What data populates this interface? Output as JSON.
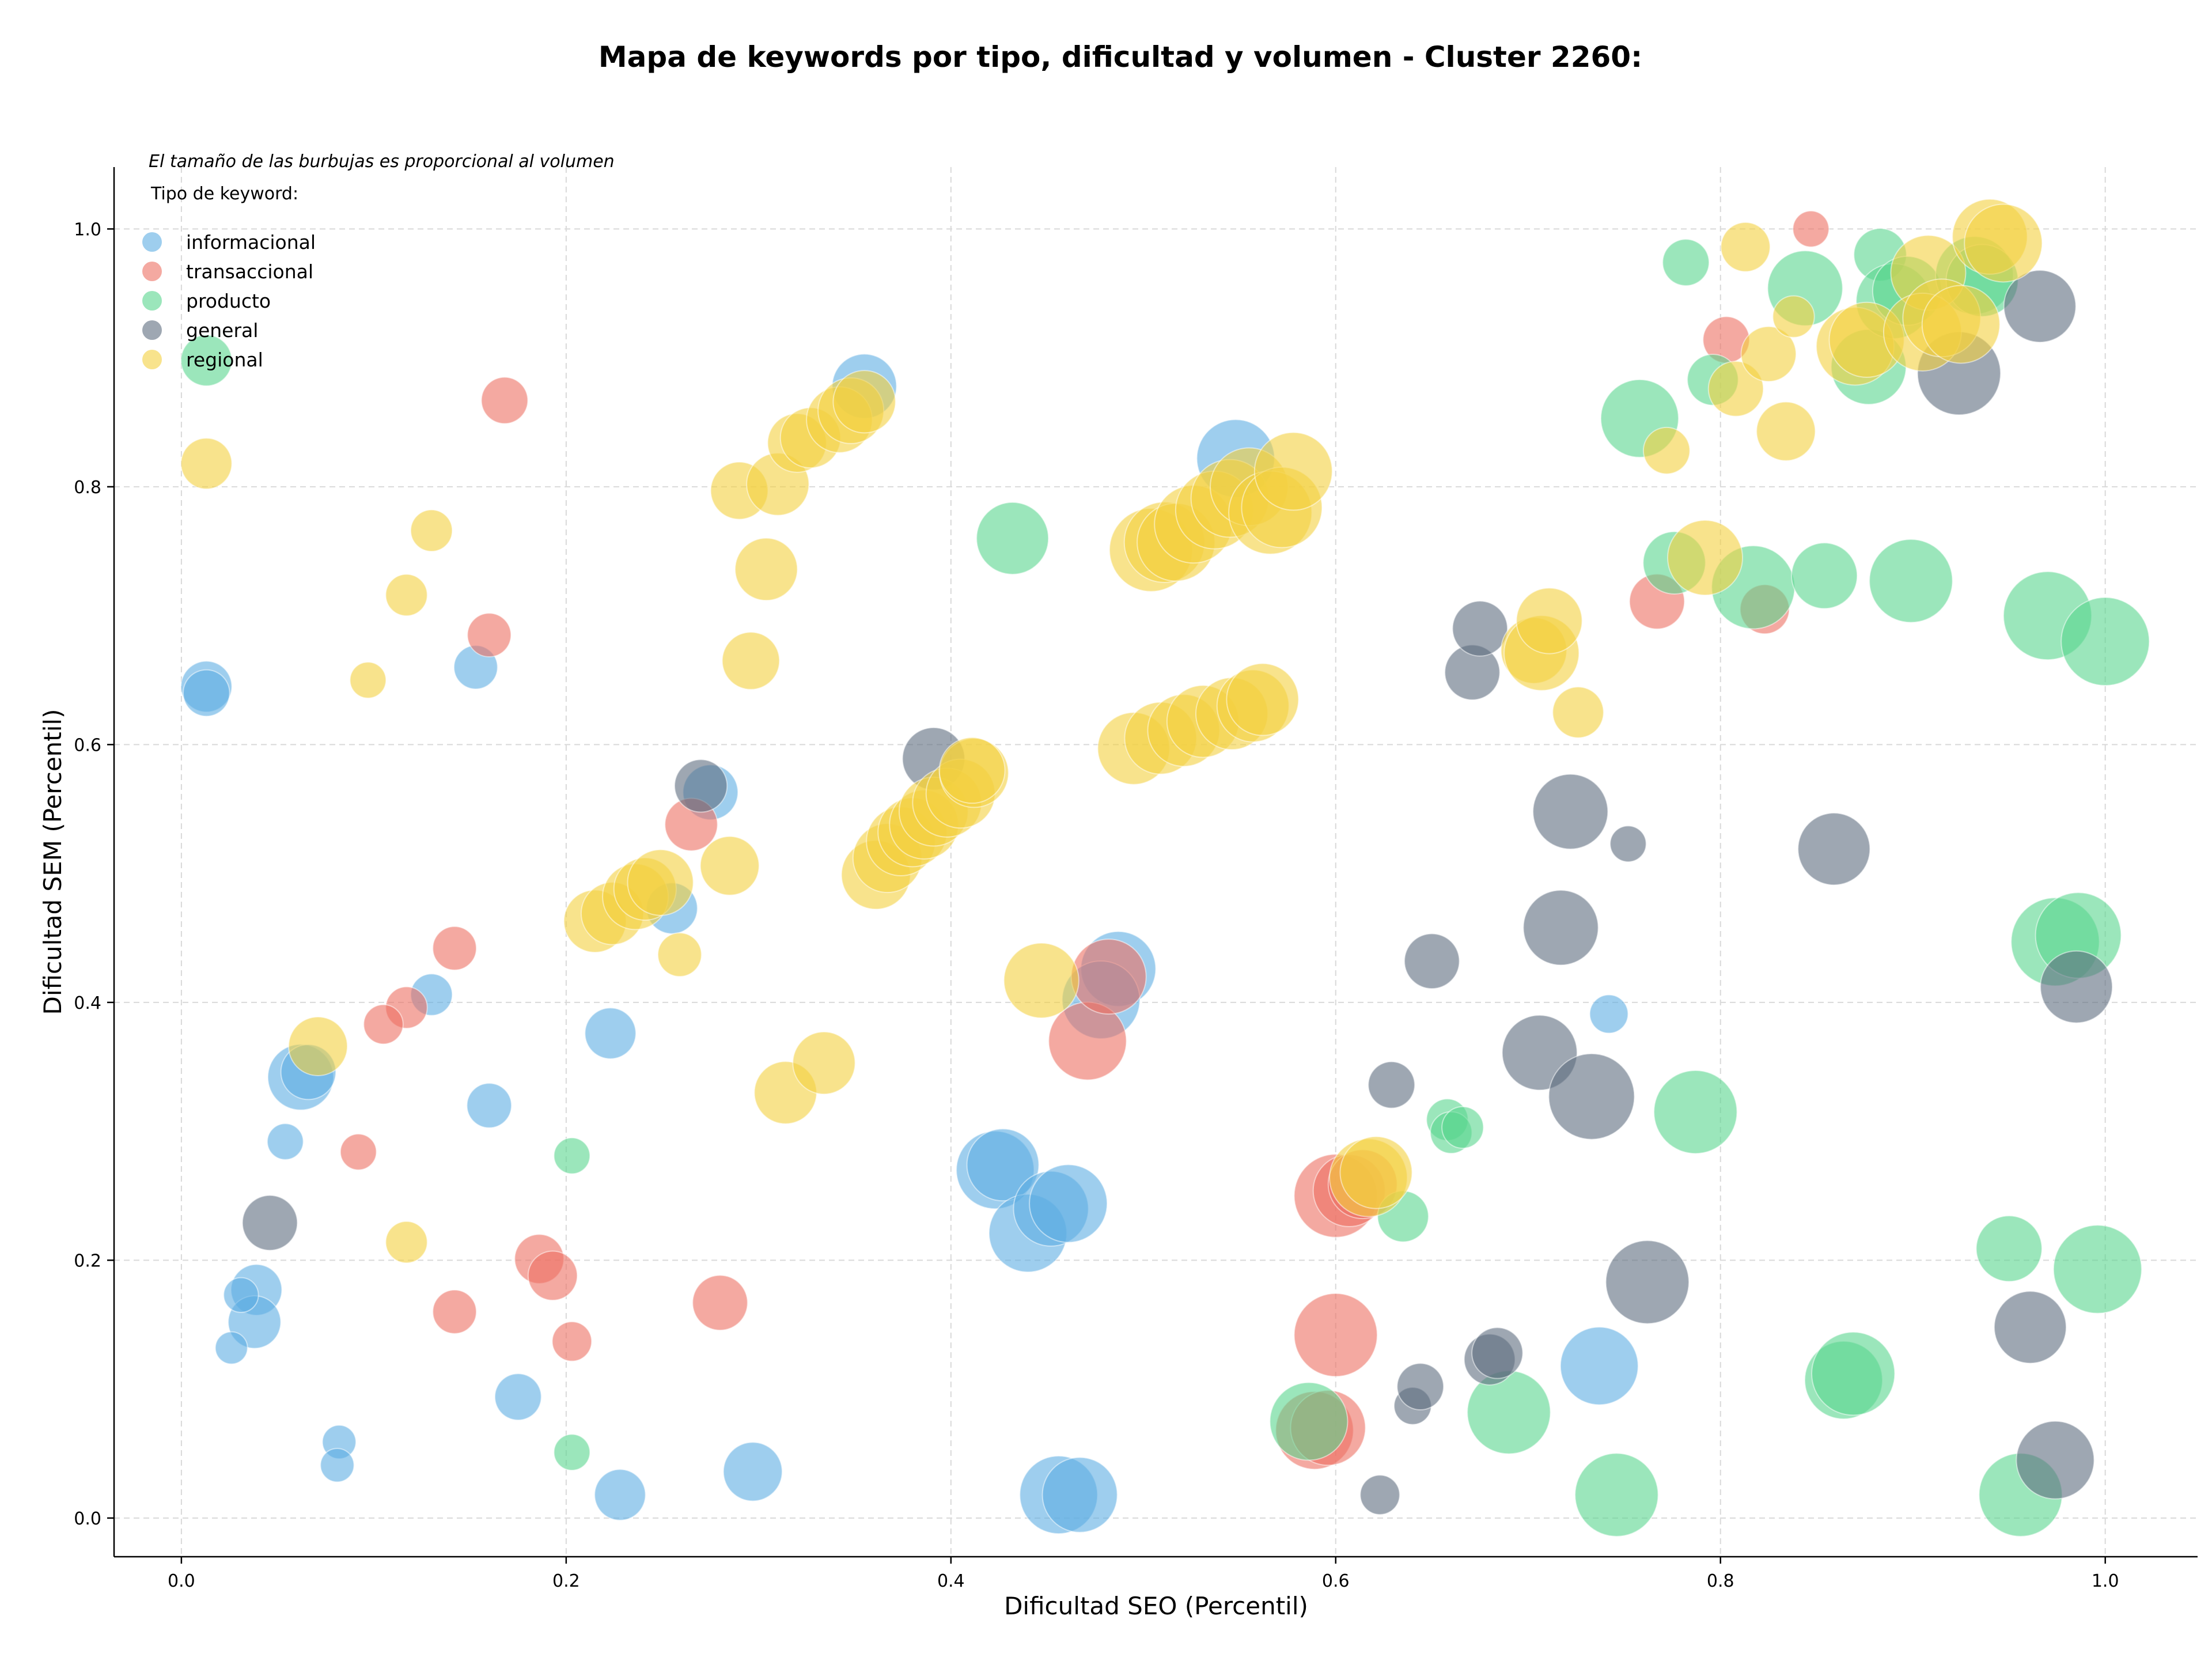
{
  "chart_data": {
    "type": "scatter",
    "title": "Mapa de keywords por tipo, dificultad y volumen - Cluster 2260:",
    "xlabel": "Dificultad SEO (Percentil)",
    "ylabel": "Dificultad SEM (Percentil)",
    "note": "El tamaño de las burbujas es proporcional al volumen",
    "legend_title": "Tipo de keyword:",
    "legend_position": "top-left",
    "xlim": [
      -0.035,
      1.048
    ],
    "ylim": [
      -0.03,
      1.048
    ],
    "x_ticks": [
      "0.0",
      "0.2",
      "0.4",
      "0.6",
      "0.8",
      "1.0"
    ],
    "y_ticks": [
      "0.0",
      "0.2",
      "0.4",
      "0.6",
      "0.8",
      "1.0"
    ],
    "grid": true,
    "series": [
      {
        "name": "informacional",
        "color": "#5DADE2",
        "points": [
          [
            0.013,
            0.645,
            300
          ],
          [
            0.013,
            0.64,
            250
          ],
          [
            0.153,
            0.66,
            220
          ],
          [
            0.13,
            0.406,
            200
          ],
          [
            0.062,
            0.342,
            500
          ],
          [
            0.066,
            0.346,
            350
          ],
          [
            0.16,
            0.32,
            230
          ],
          [
            0.054,
            0.292,
            150
          ],
          [
            0.039,
            0.177,
            300
          ],
          [
            0.038,
            0.152,
            320
          ],
          [
            0.031,
            0.173,
            140
          ],
          [
            0.026,
            0.132,
            120
          ],
          [
            0.082,
            0.059,
            130
          ],
          [
            0.081,
            0.041,
            130
          ],
          [
            0.175,
            0.094,
            250
          ],
          [
            0.223,
            0.376,
            300
          ],
          [
            0.228,
            0.018,
            300
          ],
          [
            0.297,
            0.036,
            400
          ],
          [
            0.255,
            0.473,
            300
          ],
          [
            0.275,
            0.563,
            350
          ],
          [
            0.355,
            0.878,
            480
          ],
          [
            0.548,
            0.822,
            700
          ],
          [
            0.487,
            0.426,
            650
          ],
          [
            0.478,
            0.402,
            700
          ],
          [
            0.423,
            0.27,
            700
          ],
          [
            0.427,
            0.274,
            600
          ],
          [
            0.44,
            0.221,
            700
          ],
          [
            0.452,
            0.24,
            650
          ],
          [
            0.461,
            0.244,
            700
          ],
          [
            0.456,
            0.018,
            700
          ],
          [
            0.467,
            0.018,
            650
          ],
          [
            0.737,
            0.118,
            700
          ],
          [
            0.742,
            0.391,
            170
          ]
        ]
      },
      {
        "name": "transaccional",
        "color": "#EC7063",
        "points": [
          [
            0.168,
            0.867,
            250
          ],
          [
            0.16,
            0.685,
            220
          ],
          [
            0.142,
            0.442,
            220
          ],
          [
            0.117,
            0.396,
            200
          ],
          [
            0.105,
            0.383,
            180
          ],
          [
            0.092,
            0.284,
            150
          ],
          [
            0.186,
            0.201,
            280
          ],
          [
            0.193,
            0.188,
            280
          ],
          [
            0.142,
            0.16,
            220
          ],
          [
            0.203,
            0.137,
            180
          ],
          [
            0.28,
            0.167,
            350
          ],
          [
            0.265,
            0.538,
            320
          ],
          [
            0.471,
            0.37,
            700
          ],
          [
            0.482,
            0.42,
            650
          ],
          [
            0.6,
            0.142,
            800
          ],
          [
            0.6,
            0.25,
            800
          ],
          [
            0.607,
            0.254,
            600
          ],
          [
            0.614,
            0.259,
            550
          ],
          [
            0.589,
            0.068,
            700
          ],
          [
            0.596,
            0.07,
            650
          ],
          [
            0.767,
            0.711,
            350
          ],
          [
            0.803,
            0.914,
            250
          ],
          [
            0.823,
            0.705,
            280
          ],
          [
            0.847,
            1.0,
            150
          ]
        ]
      },
      {
        "name": "producto",
        "color": "#58D68D",
        "points": [
          [
            0.013,
            0.898,
            300
          ],
          [
            0.203,
            0.281,
            150
          ],
          [
            0.203,
            0.051,
            150
          ],
          [
            0.432,
            0.76,
            600
          ],
          [
            0.586,
            0.075,
            700
          ],
          [
            0.635,
            0.234,
            300
          ],
          [
            0.658,
            0.309,
            200
          ],
          [
            0.66,
            0.299,
            200
          ],
          [
            0.666,
            0.303,
            200
          ],
          [
            0.69,
            0.082,
            800
          ],
          [
            0.746,
            0.018,
            800
          ],
          [
            0.758,
            0.853,
            700
          ],
          [
            0.782,
            0.974,
            250
          ],
          [
            0.776,
            0.741,
            450
          ],
          [
            0.787,
            0.315,
            800
          ],
          [
            0.796,
            0.883,
            300
          ],
          [
            0.817,
            0.722,
            800
          ],
          [
            0.844,
            0.954,
            650
          ],
          [
            0.854,
            0.731,
            500
          ],
          [
            0.864,
            0.107,
            700
          ],
          [
            0.869,
            0.112,
            800
          ],
          [
            0.877,
            0.893,
            650
          ],
          [
            0.883,
            0.98,
            320
          ],
          [
            0.89,
            0.944,
            650
          ],
          [
            0.897,
            0.952,
            550
          ],
          [
            0.899,
            0.727,
            800
          ],
          [
            0.932,
            0.964,
            700
          ],
          [
            0.936,
            0.96,
            600
          ],
          [
            0.95,
            0.209,
            500
          ],
          [
            0.956,
            0.018,
            800
          ],
          [
            0.97,
            0.7,
            900
          ],
          [
            0.974,
            0.447,
            900
          ],
          [
            0.986,
            0.452,
            850
          ],
          [
            0.996,
            0.193,
            900
          ],
          [
            1.0,
            0.68,
            900
          ]
        ]
      },
      {
        "name": "general",
        "color": "#5D6D7E",
        "points": [
          [
            0.046,
            0.229,
            350
          ],
          [
            0.27,
            0.568,
            320
          ],
          [
            0.391,
            0.589,
            450
          ],
          [
            0.623,
            0.018,
            180
          ],
          [
            0.629,
            0.336,
            250
          ],
          [
            0.64,
            0.087,
            160
          ],
          [
            0.644,
            0.102,
            250
          ],
          [
            0.65,
            0.432,
            350
          ],
          [
            0.671,
            0.656,
            350
          ],
          [
            0.675,
            0.69,
            350
          ],
          [
            0.68,
            0.123,
            300
          ],
          [
            0.684,
            0.128,
            300
          ],
          [
            0.706,
            0.361,
            650
          ],
          [
            0.717,
            0.458,
            650
          ],
          [
            0.722,
            0.548,
            650
          ],
          [
            0.733,
            0.327,
            850
          ],
          [
            0.752,
            0.523,
            150
          ],
          [
            0.762,
            0.183,
            800
          ],
          [
            0.859,
            0.519,
            600
          ],
          [
            0.924,
            0.888,
            800
          ],
          [
            0.961,
            0.148,
            600
          ],
          [
            0.966,
            0.94,
            600
          ],
          [
            0.974,
            0.045,
            700
          ],
          [
            0.985,
            0.412,
            600
          ]
        ]
      },
      {
        "name": "regional",
        "color": "#F4D03F",
        "points": [
          [
            0.013,
            0.818,
            300
          ],
          [
            0.13,
            0.766,
            200
          ],
          [
            0.117,
            0.716,
            200
          ],
          [
            0.097,
            0.65,
            150
          ],
          [
            0.071,
            0.366,
            400
          ],
          [
            0.117,
            0.214,
            200
          ],
          [
            0.215,
            0.463,
            450
          ],
          [
            0.224,
            0.469,
            450
          ],
          [
            0.236,
            0.482,
            500
          ],
          [
            0.241,
            0.488,
            450
          ],
          [
            0.249,
            0.493,
            500
          ],
          [
            0.259,
            0.437,
            220
          ],
          [
            0.285,
            0.506,
            400
          ],
          [
            0.29,
            0.797,
            380
          ],
          [
            0.296,
            0.665,
            380
          ],
          [
            0.304,
            0.736,
            450
          ],
          [
            0.31,
            0.802,
            450
          ],
          [
            0.314,
            0.33,
            450
          ],
          [
            0.32,
            0.834,
            400
          ],
          [
            0.327,
            0.838,
            420
          ],
          [
            0.334,
            0.353,
            450
          ],
          [
            0.342,
            0.852,
            500
          ],
          [
            0.348,
            0.859,
            500
          ],
          [
            0.355,
            0.866,
            450
          ],
          [
            0.361,
            0.499,
            550
          ],
          [
            0.367,
            0.512,
            550
          ],
          [
            0.374,
            0.525,
            550
          ],
          [
            0.38,
            0.532,
            550
          ],
          [
            0.386,
            0.538,
            550
          ],
          [
            0.391,
            0.548,
            550
          ],
          [
            0.398,
            0.555,
            550
          ],
          [
            0.405,
            0.562,
            550
          ],
          [
            0.412,
            0.578,
            550
          ],
          [
            0.411,
            0.58,
            500
          ],
          [
            0.447,
            0.417,
            650
          ],
          [
            0.504,
            0.751,
            800
          ],
          [
            0.511,
            0.757,
            750
          ],
          [
            0.517,
            0.757,
            700
          ],
          [
            0.526,
            0.771,
            700
          ],
          [
            0.537,
            0.782,
            700
          ],
          [
            0.545,
            0.791,
            700
          ],
          [
            0.555,
            0.8,
            700
          ],
          [
            0.566,
            0.78,
            800
          ],
          [
            0.572,
            0.784,
            750
          ],
          [
            0.578,
            0.812,
            700
          ],
          [
            0.495,
            0.597,
            600
          ],
          [
            0.509,
            0.605,
            600
          ],
          [
            0.521,
            0.611,
            600
          ],
          [
            0.531,
            0.618,
            600
          ],
          [
            0.546,
            0.624,
            600
          ],
          [
            0.557,
            0.63,
            600
          ],
          [
            0.562,
            0.635,
            600
          ],
          [
            0.617,
            0.264,
            700
          ],
          [
            0.621,
            0.268,
            600
          ],
          [
            0.703,
            0.673,
            500
          ],
          [
            0.707,
            0.671,
            650
          ],
          [
            0.711,
            0.696,
            500
          ],
          [
            0.726,
            0.625,
            300
          ],
          [
            0.772,
            0.828,
            250
          ],
          [
            0.792,
            0.745,
            650
          ],
          [
            0.808,
            0.876,
            350
          ],
          [
            0.813,
            0.986,
            280
          ],
          [
            0.825,
            0.903,
            350
          ],
          [
            0.834,
            0.843,
            400
          ],
          [
            0.838,
            0.932,
            200
          ],
          [
            0.87,
            0.909,
            700
          ],
          [
            0.876,
            0.914,
            650
          ],
          [
            0.908,
            0.966,
            650
          ],
          [
            0.905,
            0.92,
            700
          ],
          [
            0.915,
            0.931,
            700
          ],
          [
            0.925,
            0.926,
            700
          ],
          [
            0.94,
            0.994,
            650
          ],
          [
            0.947,
            0.989,
            700
          ]
        ]
      }
    ]
  }
}
